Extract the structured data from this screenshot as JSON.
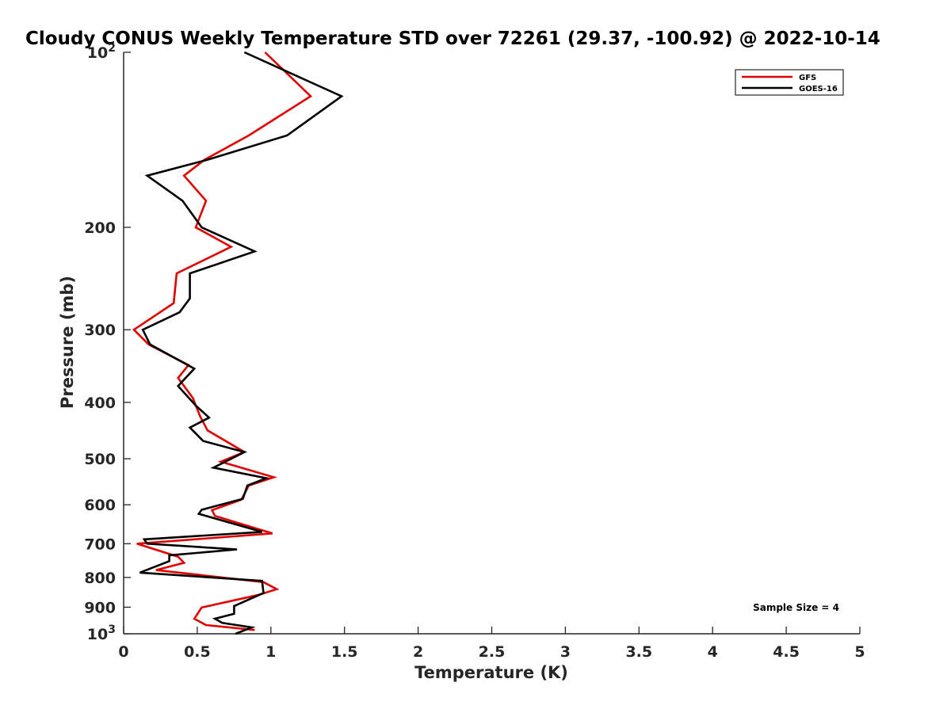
{
  "chart_data": {
    "type": "line",
    "title": "Cloudy CONUS Weekly Temperature STD over 72261 (29.37, -100.92) @ 2022-10-14",
    "xlabel": "Temperature (K)",
    "ylabel": "Pressure (mb)",
    "xlim": [
      0,
      5
    ],
    "ylim": [
      100,
      1000
    ],
    "y_scale": "log",
    "y_reversed": true,
    "grid": false,
    "legend_position": "top-right",
    "x_ticks": [
      0,
      0.5,
      1,
      1.5,
      2,
      2.5,
      3,
      3.5,
      4,
      4.5,
      5
    ],
    "x_tick_labels": [
      "0",
      "0.5",
      "1",
      "1.5",
      "2",
      "2.5",
      "3",
      "3.5",
      "4",
      "4.5",
      "5"
    ],
    "y_ticks": [
      100,
      200,
      300,
      400,
      500,
      600,
      700,
      800,
      900,
      1000
    ],
    "y_tick_labels": [
      {
        "base": "10",
        "sup": "2"
      },
      {
        "base": "200",
        "sup": ""
      },
      {
        "base": "300",
        "sup": ""
      },
      {
        "base": "400",
        "sup": ""
      },
      {
        "base": "500",
        "sup": ""
      },
      {
        "base": "600",
        "sup": ""
      },
      {
        "base": "700",
        "sup": ""
      },
      {
        "base": "800",
        "sup": ""
      },
      {
        "base": "900",
        "sup": ""
      },
      {
        "base": "10",
        "sup": "3"
      }
    ],
    "series": [
      {
        "name": "GFS",
        "color": "#e00000",
        "points": [
          [
            0.96,
            100
          ],
          [
            1.27,
            119
          ],
          [
            0.85,
            139
          ],
          [
            0.55,
            153
          ],
          [
            0.41,
            163
          ],
          [
            0.56,
            180
          ],
          [
            0.49,
            200
          ],
          [
            0.73,
            216
          ],
          [
            0.36,
            240
          ],
          [
            0.34,
            270
          ],
          [
            0.07,
            300
          ],
          [
            0.17,
            318
          ],
          [
            0.44,
            345
          ],
          [
            0.37,
            363
          ],
          [
            0.47,
            393
          ],
          [
            0.52,
            423
          ],
          [
            0.57,
            447
          ],
          [
            0.82,
            487
          ],
          [
            0.66,
            506
          ],
          [
            1.02,
            538
          ],
          [
            0.85,
            556
          ],
          [
            0.8,
            588
          ],
          [
            0.6,
            613
          ],
          [
            0.62,
            627
          ],
          [
            1.01,
            672
          ],
          [
            0.09,
            700
          ],
          [
            0.37,
            737
          ],
          [
            0.41,
            755
          ],
          [
            0.22,
            777
          ],
          [
            0.95,
            815
          ],
          [
            1.04,
            838
          ],
          [
            0.91,
            858
          ],
          [
            0.53,
            901
          ],
          [
            0.48,
            942
          ],
          [
            0.56,
            966
          ],
          [
            0.89,
            985
          ]
        ]
      },
      {
        "name": "GOES-16",
        "color": "#000000",
        "points": [
          [
            0.82,
            100
          ],
          [
            1.48,
            119
          ],
          [
            1.11,
            139
          ],
          [
            0.57,
            153
          ],
          [
            0.16,
            163
          ],
          [
            0.4,
            180
          ],
          [
            0.53,
            200
          ],
          [
            0.89,
            220
          ],
          [
            0.45,
            240
          ],
          [
            0.45,
            265
          ],
          [
            0.38,
            280
          ],
          [
            0.13,
            300
          ],
          [
            0.18,
            318
          ],
          [
            0.48,
            350
          ],
          [
            0.37,
            375
          ],
          [
            0.49,
            405
          ],
          [
            0.58,
            425
          ],
          [
            0.45,
            442
          ],
          [
            0.54,
            466
          ],
          [
            0.82,
            487
          ],
          [
            0.61,
            518
          ],
          [
            0.97,
            540
          ],
          [
            0.84,
            556
          ],
          [
            0.81,
            586
          ],
          [
            0.53,
            612
          ],
          [
            0.51,
            622
          ],
          [
            0.94,
            668
          ],
          [
            0.14,
            688
          ],
          [
            0.16,
            700
          ],
          [
            0.77,
            716
          ],
          [
            0.31,
            733
          ],
          [
            0.31,
            750
          ],
          [
            0.11,
            785
          ],
          [
            0.94,
            811
          ],
          [
            0.95,
            851
          ],
          [
            0.75,
            896
          ],
          [
            0.75,
            924
          ],
          [
            0.62,
            942
          ],
          [
            0.67,
            958
          ],
          [
            0.87,
            975
          ],
          [
            0.76,
            1000
          ]
        ]
      }
    ],
    "annotations": [
      "Sample Size = 4"
    ]
  }
}
